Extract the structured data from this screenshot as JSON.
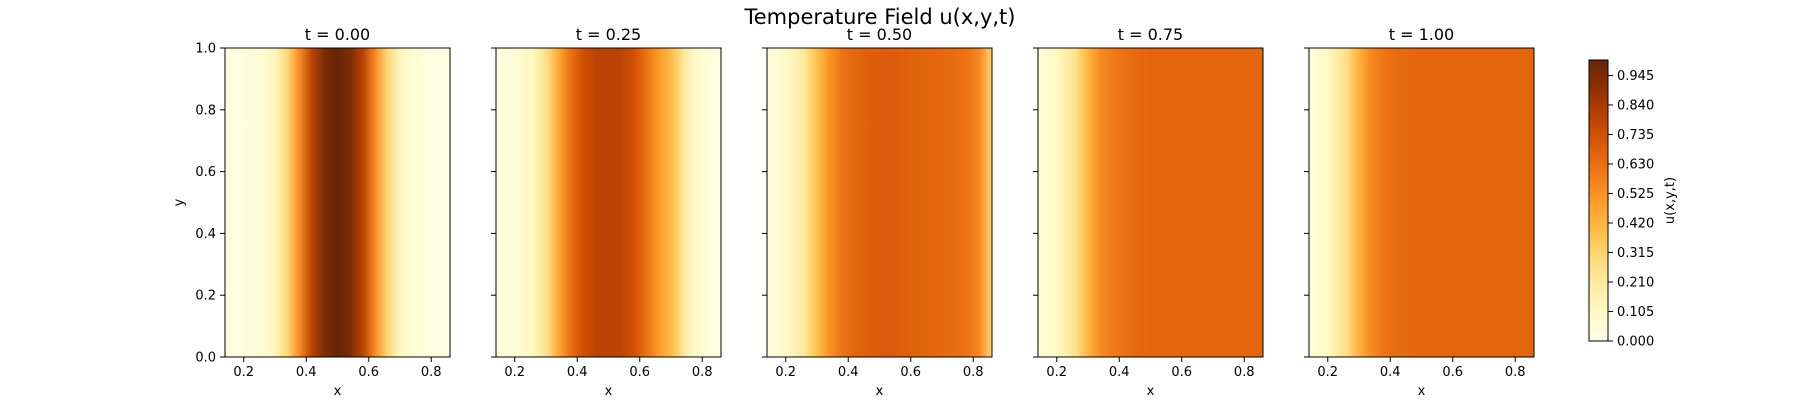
{
  "figure": {
    "title": "Temperature Field u(x,y,t)"
  },
  "chart_data": {
    "type": "heatmap",
    "colormap": "YlOrBr",
    "colormap_stops": [
      "#ffffe5",
      "#fff7bc",
      "#fee391",
      "#fec44f",
      "#fe9929",
      "#ec7014",
      "#cc4c02",
      "#993404",
      "#662506"
    ],
    "shared": {
      "xlabel": "x",
      "ylabel": "y",
      "xlim": [
        0.14,
        0.86
      ],
      "ylim": [
        0.0,
        1.0
      ],
      "xticks": [
        0.2,
        0.4,
        0.6,
        0.8
      ],
      "xtick_labels": [
        "0.2",
        "0.4",
        "0.6",
        "0.8"
      ],
      "yticks": [
        0.0,
        0.2,
        0.4,
        0.6,
        0.8,
        1.0
      ],
      "ytick_labels": [
        "0.0",
        "0.2",
        "0.4",
        "0.6",
        "0.8",
        "1.0"
      ],
      "x_profile_points": [
        0.14,
        0.2,
        0.26,
        0.3,
        0.34,
        0.38,
        0.42,
        0.46,
        0.5,
        0.54,
        0.58,
        0.62,
        0.66,
        0.7,
        0.74,
        0.78,
        0.82,
        0.86
      ]
    },
    "panels": [
      {
        "title": "t = 0.00",
        "t": 0.0,
        "u_profile": [
          0.01,
          0.02,
          0.05,
          0.12,
          0.3,
          0.55,
          0.8,
          0.95,
          1.0,
          0.95,
          0.8,
          0.55,
          0.3,
          0.12,
          0.05,
          0.02,
          0.01,
          0.01
        ]
      },
      {
        "title": "t = 0.25",
        "t": 0.25,
        "u_profile": [
          0.01,
          0.04,
          0.12,
          0.26,
          0.45,
          0.63,
          0.74,
          0.79,
          0.8,
          0.79,
          0.74,
          0.63,
          0.5,
          0.4,
          0.22,
          0.08,
          0.02,
          0.01
        ]
      },
      {
        "title": "t = 0.50",
        "t": 0.5,
        "u_profile": [
          0.02,
          0.08,
          0.22,
          0.38,
          0.52,
          0.61,
          0.66,
          0.68,
          0.69,
          0.69,
          0.68,
          0.67,
          0.66,
          0.65,
          0.64,
          0.62,
          0.55,
          0.3
        ]
      },
      {
        "title": "t = 0.75",
        "t": 0.75,
        "u_profile": [
          0.02,
          0.1,
          0.26,
          0.42,
          0.54,
          0.6,
          0.63,
          0.65,
          0.66,
          0.66,
          0.66,
          0.66,
          0.66,
          0.66,
          0.66,
          0.66,
          0.66,
          0.66
        ]
      },
      {
        "title": "t = 1.00",
        "t": 1.0,
        "u_profile": [
          0.02,
          0.1,
          0.27,
          0.43,
          0.55,
          0.61,
          0.64,
          0.65,
          0.66,
          0.66,
          0.66,
          0.66,
          0.66,
          0.66,
          0.66,
          0.66,
          0.66,
          0.66
        ]
      }
    ],
    "colorbar": {
      "label": "u(x,y,t)",
      "range": [
        0.0,
        1.0
      ],
      "ticks": [
        0.0,
        0.105,
        0.21,
        0.315,
        0.42,
        0.525,
        0.63,
        0.735,
        0.84,
        0.945
      ],
      "tick_labels": [
        "0.000",
        "0.105",
        "0.210",
        "0.315",
        "0.420",
        "0.525",
        "0.630",
        "0.735",
        "0.840",
        "0.945"
      ]
    }
  }
}
